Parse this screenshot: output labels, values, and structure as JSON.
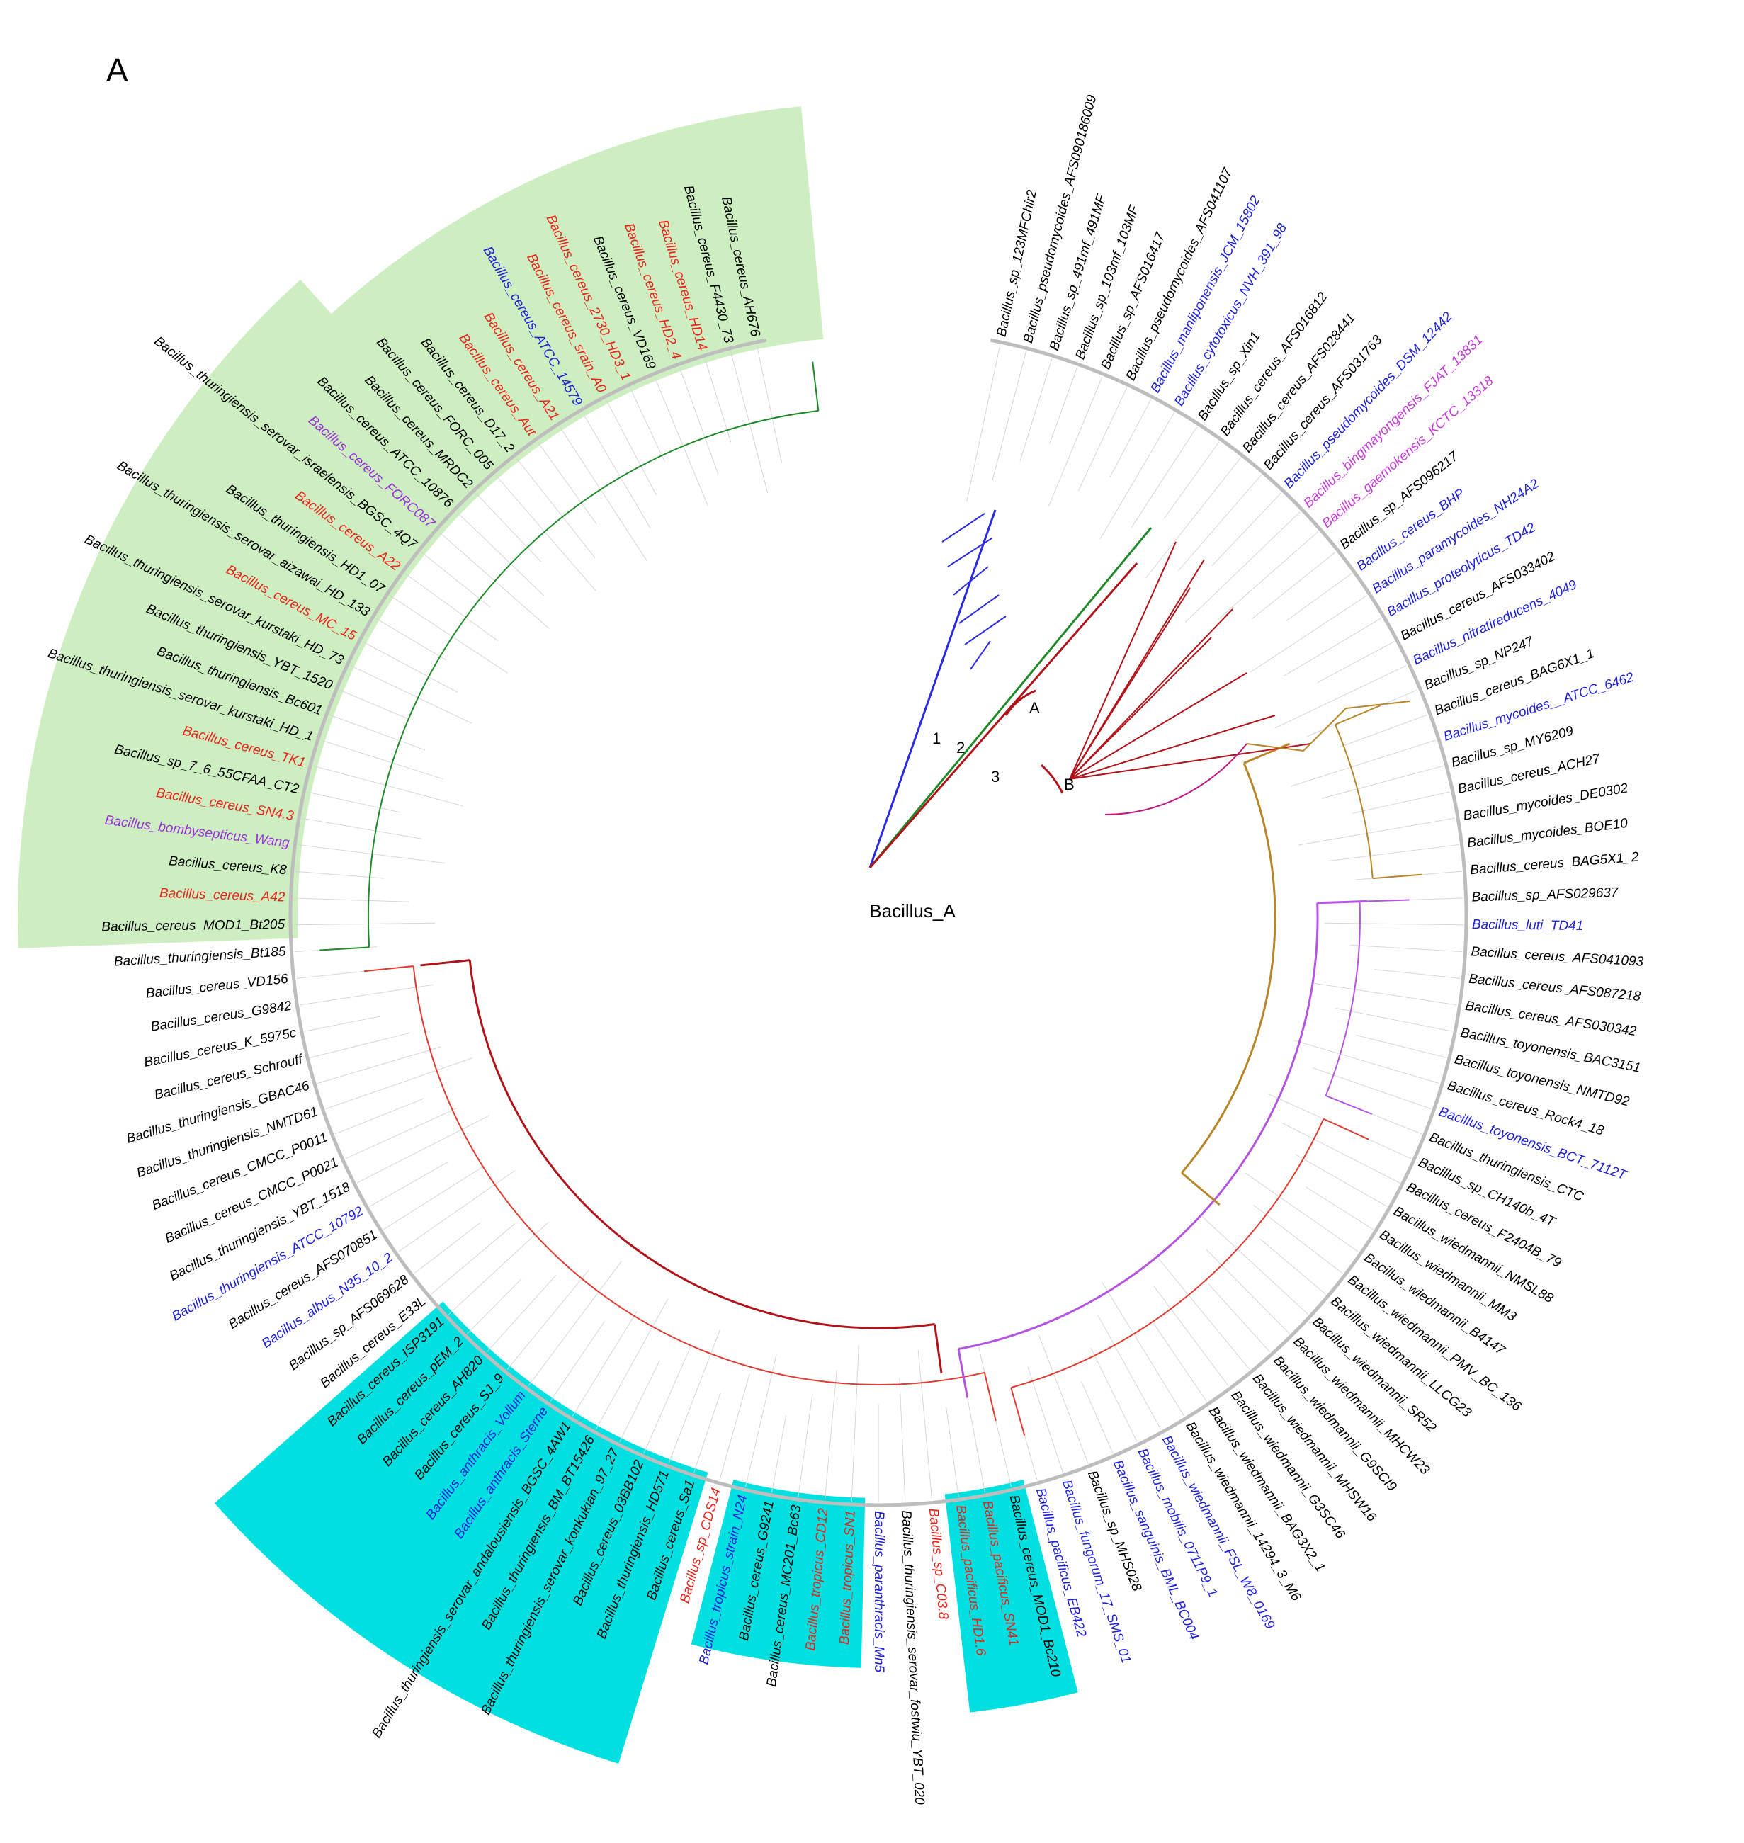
{
  "panel_label": "A",
  "root_label": "Bacillus_A",
  "clade_labels": [
    "1",
    "2",
    "3",
    "A",
    "B"
  ],
  "colors": {
    "black": "#000000",
    "red": "#e8231a",
    "blue": "#1f22d6",
    "purple": "#9b30d9",
    "magenta": "#c43ad6",
    "green": "#1e8a2a",
    "darkred": "#b0141a",
    "branch_magenta": "#c2177e",
    "branch_gold": "#b8862a",
    "branch_purple": "#b455e0",
    "branch_red": "#e03b30",
    "branch_blue": "#2a2ae0",
    "highlight_green": "#cdeec0",
    "highlight_cyan": "#00e0e0"
  },
  "leaves": [
    {
      "name": "Bacillus_sp_123MFChir2",
      "color": "black"
    },
    {
      "name": "Bacillus_pseudomycoides_AFS090186009",
      "color": "black"
    },
    {
      "name": "Bacillus_sp_491mf_491MF",
      "color": "black"
    },
    {
      "name": "Bacillus_sp_103mf_103MF",
      "color": "black"
    },
    {
      "name": "Bacillus_sp_AFS016417",
      "color": "black"
    },
    {
      "name": "Bacillus_pseudomycoides_AFS041107",
      "color": "black"
    },
    {
      "name": "Bacillus_manliponensis_JCM_15802",
      "color": "blue"
    },
    {
      "name": "Bacillus_cytotoxicus_NVH_391_98",
      "color": "blue"
    },
    {
      "name": "Bacillus_sp_Xin1",
      "color": "black"
    },
    {
      "name": "Bacillus_cereus_AFS016812",
      "color": "black"
    },
    {
      "name": "Bacillus_cereus_AFS028441",
      "color": "black"
    },
    {
      "name": "Bacillus_cereus_AFS031763",
      "color": "black"
    },
    {
      "name": "Bacillus_pseudomycoides_DSM_12442",
      "color": "blue"
    },
    {
      "name": "Bacillus_bingmayongensis_FJAT_13831",
      "color": "magenta"
    },
    {
      "name": "Bacillus_gaemokensis_KCTC_13318",
      "color": "magenta"
    },
    {
      "name": "Bacillus_sp_AFS096217",
      "color": "black"
    },
    {
      "name": "Bacillus_cereus_BHP",
      "color": "blue"
    },
    {
      "name": "Bacillus_paramycoides_NH24A2",
      "color": "blue"
    },
    {
      "name": "Bacillus_proteolyticus_TD42",
      "color": "blue"
    },
    {
      "name": "Bacillus_cereus_AFS033402",
      "color": "black"
    },
    {
      "name": "Bacillus_nitratireducens_4049",
      "color": "blue"
    },
    {
      "name": "Bacillus_sp_NP247",
      "color": "black"
    },
    {
      "name": "Bacillus_cereus_BAG6X1_1",
      "color": "black"
    },
    {
      "name": "Bacillus_mycoides__ATCC_6462",
      "color": "blue"
    },
    {
      "name": "Bacillus_sp_MY6209",
      "color": "black"
    },
    {
      "name": "Bacillus_cereus_ACH27",
      "color": "black"
    },
    {
      "name": "Bacillus_mycoides_DE0302",
      "color": "black"
    },
    {
      "name": "Bacillus_mycoides_BOE10",
      "color": "black"
    },
    {
      "name": "Bacillus_cereus_BAG5X1_2",
      "color": "black"
    },
    {
      "name": "Bacillus_sp_AFS029637",
      "color": "black"
    },
    {
      "name": "Bacillus_luti_TD41",
      "color": "blue"
    },
    {
      "name": "Bacillus_cereus_AFS041093",
      "color": "black"
    },
    {
      "name": "Bacillus_cereus_AFS087218",
      "color": "black"
    },
    {
      "name": "Bacillus_cereus_AFS030342",
      "color": "black"
    },
    {
      "name": "Bacillus_toyonensis_BAC3151",
      "color": "black"
    },
    {
      "name": "Bacillus_toyonensis_NMTD92",
      "color": "black"
    },
    {
      "name": "Bacillus_cereus_Rock4_18",
      "color": "black"
    },
    {
      "name": "Bacillus_toyonensis_BCT_7112T",
      "color": "blue"
    },
    {
      "name": "Bacillus_thuringiensis_CTC",
      "color": "black"
    },
    {
      "name": "Bacillus_sp_CH140b_4T",
      "color": "black"
    },
    {
      "name": "Bacillus_cereus_F2404B_79",
      "color": "black"
    },
    {
      "name": "Bacillus_wiedmannii_NMSL88",
      "color": "black"
    },
    {
      "name": "Bacillus_wiedmannii_MM3",
      "color": "black"
    },
    {
      "name": "Bacillus_wiedmannii_B4147",
      "color": "black"
    },
    {
      "name": "Bacillus_wiedmannii_PMV_BC_136",
      "color": "black"
    },
    {
      "name": "Bacillus_wiedmannii_LLCG23",
      "color": "black"
    },
    {
      "name": "Bacillus_wiedmannii_SR52",
      "color": "black"
    },
    {
      "name": "Bacillus_wiedmannii_MHCW23",
      "color": "black"
    },
    {
      "name": "Bacillus_wiedmannii_G9SCI9",
      "color": "black"
    },
    {
      "name": "Bacillus_wiedmannii_MHSW16",
      "color": "black"
    },
    {
      "name": "Bacillus_wiedmannii_G3SC46",
      "color": "black"
    },
    {
      "name": "Bacillus_wiedmannii_BAG3X2_1",
      "color": "black"
    },
    {
      "name": "Bacillus_wiedmannii_14294_3_M6",
      "color": "black"
    },
    {
      "name": "Bacillus_wiedmannii_FSL_W8_0169",
      "color": "blue"
    },
    {
      "name": "Bacillus_mobilis_0711P9_1",
      "color": "blue"
    },
    {
      "name": "Bacillus_sanguinis_BML_BC004",
      "color": "blue"
    },
    {
      "name": "Bacillus_sp_MHS028",
      "color": "black"
    },
    {
      "name": "Bacillus_fungorum_17_SMS_01",
      "color": "blue"
    },
    {
      "name": "Bacillus_pacificus_EB422",
      "color": "blue"
    },
    {
      "name": "Bacillus_cereus_MOD1_Bc210",
      "color": "black"
    },
    {
      "name": "Bacillus_pacificus_SN41",
      "color": "red"
    },
    {
      "name": "Bacillus_pacificus_HD1.6",
      "color": "red"
    },
    {
      "name": "Bacillus_sp_C03.8",
      "color": "red"
    },
    {
      "name": "Bacillus_thuringiensis_serovar_fostwiu_YBT_020",
      "color": "black"
    },
    {
      "name": "Bacillus_paranthracis_Mn5",
      "color": "blue"
    },
    {
      "name": "Bacillus_tropicus_SN1",
      "color": "red"
    },
    {
      "name": "Bacillus_tropicus_CD12",
      "color": "red"
    },
    {
      "name": "Bacillus_cereus_MC201_Bc63",
      "color": "black"
    },
    {
      "name": "Bacillus_cereus_G9241",
      "color": "black"
    },
    {
      "name": "Bacillus_tropicus_strain_N24",
      "color": "blue"
    },
    {
      "name": "Bacillus_sp_CDS14",
      "color": "red"
    },
    {
      "name": "Bacillus_cereus_Sa1",
      "color": "black"
    },
    {
      "name": "Bacillus_thuringiensis_HD571",
      "color": "black"
    },
    {
      "name": "Bacillus_cereus_03BB102",
      "color": "black"
    },
    {
      "name": "Bacillus_thuringiensis_serovar_konkukian_97_27",
      "color": "black"
    },
    {
      "name": "Bacillus_thuringiensis_BM_BT15426",
      "color": "black"
    },
    {
      "name": "Bacillus_thuringiensis_serovar_andalousiensis_BGSC_4AW1",
      "color": "black"
    },
    {
      "name": "Bacillus_anthracis_Sterne",
      "color": "blue"
    },
    {
      "name": "Bacillus_anthracis_Vollum",
      "color": "blue"
    },
    {
      "name": "Bacillus_cereus_SJ_9",
      "color": "black"
    },
    {
      "name": "Bacillus_cereus_AH820",
      "color": "black"
    },
    {
      "name": "Bacillus_cereus_pEM_2",
      "color": "black"
    },
    {
      "name": "Bacillus_cereus_ISP3191",
      "color": "black"
    },
    {
      "name": "Bacillus_cereus_E33L",
      "color": "black"
    },
    {
      "name": "Bacillus_sp_AFS069628",
      "color": "black"
    },
    {
      "name": "Bacillus_albus_N35_10_2",
      "color": "blue"
    },
    {
      "name": "Bacillus_cereus_AFS070851",
      "color": "black"
    },
    {
      "name": "Bacillus_thuringiensis_ATCC_10792",
      "color": "blue"
    },
    {
      "name": "Bacillus_thuringiensis_YBT_1518",
      "color": "black"
    },
    {
      "name": "Bacillus_cereus_CMCC_P0021",
      "color": "black"
    },
    {
      "name": "Bacillus_cereus_CMCC_P0011",
      "color": "black"
    },
    {
      "name": "Bacillus_thuringiensis_NMTD61",
      "color": "black"
    },
    {
      "name": "Bacillus_thuringiensis_GBAC46",
      "color": "black"
    },
    {
      "name": "Bacillus_cereus_Schrouff",
      "color": "black"
    },
    {
      "name": "Bacillus_cereus_K_5975c",
      "color": "black"
    },
    {
      "name": "Bacillus_cereus_G9842",
      "color": "black"
    },
    {
      "name": "Bacillus_cereus_VD156",
      "color": "black"
    },
    {
      "name": "Bacillus_thuringiensis_Bt185",
      "color": "black"
    },
    {
      "name": "Bacillus_cereus_MOD1_Bt205",
      "color": "black"
    },
    {
      "name": "Bacillus_cereus_A42",
      "color": "red"
    },
    {
      "name": "Bacillus_cereus_K8",
      "color": "black"
    },
    {
      "name": "Bacillus_bombysepticus_Wang",
      "color": "purple"
    },
    {
      "name": "Bacillus_cereus_SN4.3",
      "color": "red"
    },
    {
      "name": "Bacillus_sp_7_6_55CFAA_CT2",
      "color": "black"
    },
    {
      "name": "Bacillus_cereus_TK1",
      "color": "red"
    },
    {
      "name": "Bacillus_thuringiensis_serovar_kurstaki_HD_1",
      "color": "black"
    },
    {
      "name": "Bacillus_thuringiensis_Bc601",
      "color": "black"
    },
    {
      "name": "Bacillus_thuringiensis_YBT_1520",
      "color": "black"
    },
    {
      "name": "Bacillus_thuringiensis_serovar_kurstaki_HD_73",
      "color": "black"
    },
    {
      "name": "Bacillus_cereus_MC_15",
      "color": "red"
    },
    {
      "name": "Bacillus_thuringiensis_serovar_aizawai_HD_133",
      "color": "black"
    },
    {
      "name": "Bacillus_thuringiensis_HD1_07",
      "color": "black"
    },
    {
      "name": "Bacillus_cereus_A22",
      "color": "red"
    },
    {
      "name": "Bacillus_thuringiensis_serovar_israelensis_BGSC_4Q7",
      "color": "black"
    },
    {
      "name": "Bacillus_cereus_FORC087",
      "color": "purple"
    },
    {
      "name": "Bacillus_cereus_ATCC_10876",
      "color": "black"
    },
    {
      "name": "Bacillus_cereus_MRDC2",
      "color": "black"
    },
    {
      "name": "Bacillus_cereus_FORC_005",
      "color": "black"
    },
    {
      "name": "Bacillus_cereus_D17_2",
      "color": "black"
    },
    {
      "name": "Bacillus_cereus_Aut",
      "color": "red"
    },
    {
      "name": "Bacillus_cereus_A21",
      "color": "red"
    },
    {
      "name": "Bacillus_cereus_ATCC_14579",
      "color": "blue"
    },
    {
      "name": "Bacillus_cereus_srain_A0",
      "color": "red"
    },
    {
      "name": "Bacillus_cereus_2730_HD3_1",
      "color": "red"
    },
    {
      "name": "Bacillus_cereus_VD169",
      "color": "black"
    },
    {
      "name": "Bacillus_cereus_HD2_4",
      "color": "red"
    },
    {
      "name": "Bacillus_cereus_HD14",
      "color": "red"
    },
    {
      "name": "Bacillus_cereus_F4430_73",
      "color": "black"
    },
    {
      "name": "Bacillus_cereus_AH676",
      "color": "black"
    }
  ]
}
